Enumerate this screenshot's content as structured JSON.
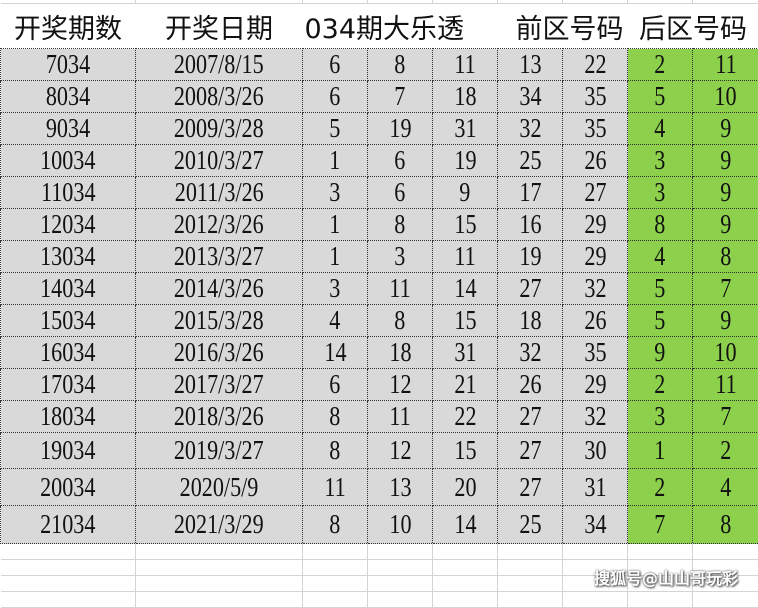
{
  "header": {
    "period": "开奖期数",
    "date": "开奖日期",
    "title": "034期大乐透",
    "front": "前区号码",
    "back": "后区号码"
  },
  "colors": {
    "row_bg": "#d9d9d9",
    "back_bg": "#8cd04c"
  },
  "rows": [
    {
      "period": "7034",
      "date": "2007/8/15",
      "front": [
        "6",
        "8",
        "11",
        "13",
        "22"
      ],
      "back": [
        "2",
        "11"
      ]
    },
    {
      "period": "8034",
      "date": "2008/3/26",
      "front": [
        "6",
        "7",
        "18",
        "34",
        "35"
      ],
      "back": [
        "5",
        "10"
      ]
    },
    {
      "period": "9034",
      "date": "2009/3/28",
      "front": [
        "5",
        "19",
        "31",
        "32",
        "35"
      ],
      "back": [
        "4",
        "9"
      ]
    },
    {
      "period": "10034",
      "date": "2010/3/27",
      "front": [
        "1",
        "6",
        "19",
        "25",
        "26"
      ],
      "back": [
        "3",
        "9"
      ]
    },
    {
      "period": "11034",
      "date": "2011/3/26",
      "front": [
        "3",
        "6",
        "9",
        "17",
        "27"
      ],
      "back": [
        "3",
        "9"
      ]
    },
    {
      "period": "12034",
      "date": "2012/3/26",
      "front": [
        "1",
        "8",
        "15",
        "16",
        "29"
      ],
      "back": [
        "8",
        "9"
      ]
    },
    {
      "period": "13034",
      "date": "2013/3/27",
      "front": [
        "1",
        "3",
        "11",
        "19",
        "29"
      ],
      "back": [
        "4",
        "8"
      ]
    },
    {
      "period": "14034",
      "date": "2014/3/26",
      "front": [
        "3",
        "11",
        "14",
        "27",
        "32"
      ],
      "back": [
        "5",
        "7"
      ]
    },
    {
      "period": "15034",
      "date": "2015/3/28",
      "front": [
        "4",
        "8",
        "15",
        "18",
        "26"
      ],
      "back": [
        "5",
        "9"
      ]
    },
    {
      "period": "16034",
      "date": "2016/3/26",
      "front": [
        "14",
        "18",
        "31",
        "32",
        "35"
      ],
      "back": [
        "9",
        "10"
      ]
    },
    {
      "period": "17034",
      "date": "2017/3/27",
      "front": [
        "6",
        "12",
        "21",
        "26",
        "29"
      ],
      "back": [
        "2",
        "11"
      ]
    },
    {
      "period": "18034",
      "date": "2018/3/26",
      "front": [
        "8",
        "11",
        "22",
        "27",
        "32"
      ],
      "back": [
        "3",
        "7"
      ]
    },
    {
      "period": "19034",
      "date": "2019/3/27",
      "front": [
        "8",
        "12",
        "15",
        "27",
        "30"
      ],
      "back": [
        "1",
        "2"
      ]
    },
    {
      "period": "20034",
      "date": "2020/5/9",
      "front": [
        "11",
        "13",
        "20",
        "27",
        "31"
      ],
      "back": [
        "2",
        "4"
      ]
    },
    {
      "period": "21034",
      "date": "2021/3/29",
      "front": [
        "8",
        "10",
        "14",
        "25",
        "34"
      ],
      "back": [
        "7",
        "8"
      ]
    }
  ],
  "watermark": "搜狐号@山山哥玩彩"
}
